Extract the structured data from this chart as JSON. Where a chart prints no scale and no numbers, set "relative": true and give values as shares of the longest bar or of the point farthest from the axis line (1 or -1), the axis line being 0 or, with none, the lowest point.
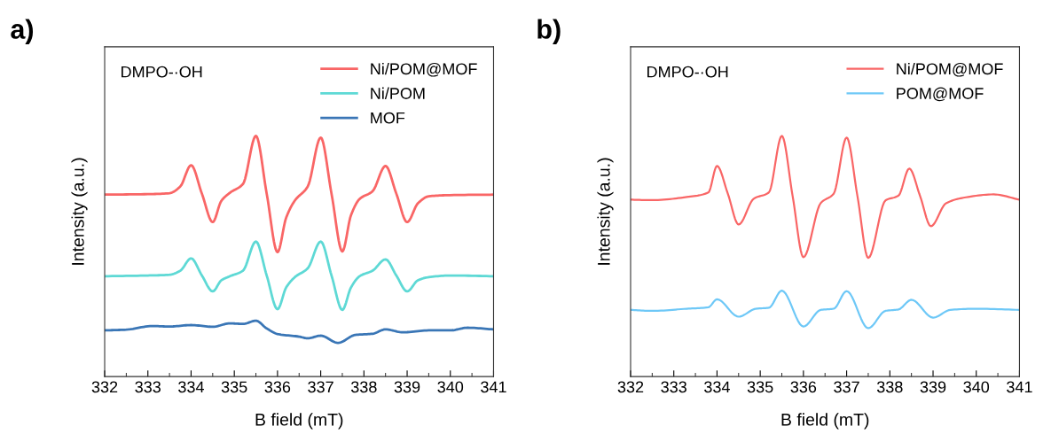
{
  "chart_data": [
    {
      "type": "line",
      "title": "a)",
      "xlabel": "B field (mT)",
      "ylabel": "Intensity (a.u.)",
      "relative": true,
      "xlim": [
        332,
        341
      ],
      "xticks": [
        332,
        333,
        334,
        335,
        336,
        337,
        338,
        339,
        340,
        341
      ],
      "tick_labels": "x",
      "legend": "top right",
      "grid": false,
      "annotations": [
        "DMPO-·OH"
      ],
      "series": [
        {
          "name": "Ni/POM@MOF",
          "color": "#f96666",
          "x": [
            332,
            333,
            333.5,
            333.75,
            334.0,
            334.25,
            334.5,
            334.7,
            334.9,
            335.2,
            335.5,
            335.75,
            336.0,
            336.2,
            336.4,
            336.7,
            337.0,
            337.25,
            337.5,
            337.7,
            337.9,
            338.2,
            338.5,
            338.75,
            339.0,
            339.25,
            339.5,
            340,
            341
          ],
          "values": [
            0.756,
            0.758,
            0.762,
            0.79,
            0.878,
            0.76,
            0.642,
            0.73,
            0.764,
            0.8,
            1.0,
            0.76,
            0.517,
            0.66,
            0.731,
            0.79,
            0.993,
            0.76,
            0.52,
            0.67,
            0.738,
            0.77,
            0.875,
            0.76,
            0.642,
            0.72,
            0.749,
            0.754,
            0.756
          ]
        },
        {
          "name": "Ni/POM",
          "color": "#5ed9d5",
          "x": [
            332,
            333,
            333.5,
            333.75,
            334.0,
            334.25,
            334.5,
            334.7,
            334.9,
            335.2,
            335.5,
            335.75,
            336.0,
            336.2,
            336.4,
            336.7,
            337.0,
            337.25,
            337.5,
            337.7,
            337.9,
            338.2,
            338.5,
            338.75,
            339.0,
            339.25,
            339.5,
            340,
            341
          ],
          "values": [
            0.417,
            0.42,
            0.423,
            0.44,
            0.491,
            0.42,
            0.354,
            0.4,
            0.417,
            0.44,
            0.561,
            0.42,
            0.28,
            0.37,
            0.413,
            0.45,
            0.561,
            0.42,
            0.277,
            0.37,
            0.417,
            0.44,
            0.487,
            0.42,
            0.354,
            0.4,
            0.413,
            0.42,
            0.417
          ]
        },
        {
          "name": "MOF",
          "color": "#3a76b6",
          "x": [
            332,
            332.5,
            333.1,
            333.5,
            334.0,
            334.5,
            334.9,
            335.2,
            335.5,
            335.75,
            336.0,
            336.5,
            336.7,
            337.0,
            337.4,
            337.8,
            338.2,
            338.5,
            338.9,
            339.5,
            340.0,
            340.4,
            341
          ],
          "values": [
            0.192,
            0.195,
            0.21,
            0.208,
            0.214,
            0.207,
            0.221,
            0.219,
            0.232,
            0.2,
            0.177,
            0.166,
            0.159,
            0.17,
            0.14,
            0.173,
            0.178,
            0.196,
            0.184,
            0.192,
            0.192,
            0.203,
            0.196
          ]
        }
      ]
    },
    {
      "type": "line",
      "title": "b)",
      "xlabel": "B field (mT)",
      "ylabel": "Intensity (a.u.)",
      "relative": true,
      "xlim": [
        332,
        341
      ],
      "xticks": [
        332,
        333,
        334,
        335,
        336,
        337,
        338,
        339,
        340,
        341
      ],
      "tick_labels": "x",
      "legend": "top right",
      "grid": false,
      "annotations": [
        "DMPO-·OH"
      ],
      "series": [
        {
          "name": "Ni/POM@MOF",
          "color": "#f96666",
          "x": [
            332,
            332.5,
            333.3,
            333.8,
            334.0,
            334.25,
            334.5,
            334.85,
            335.2,
            335.5,
            335.75,
            336.0,
            336.4,
            336.7,
            337.0,
            337.25,
            337.5,
            337.9,
            338.2,
            338.45,
            338.7,
            338.95,
            339.3,
            339.7,
            340.4,
            341
          ],
          "values": [
            0.735,
            0.733,
            0.746,
            0.765,
            0.875,
            0.76,
            0.632,
            0.739,
            0.765,
            1.0,
            0.75,
            0.496,
            0.721,
            0.76,
            0.993,
            0.75,
            0.493,
            0.732,
            0.752,
            0.864,
            0.75,
            0.625,
            0.72,
            0.743,
            0.757,
            0.735
          ]
        },
        {
          "name": "POM@MOF",
          "color": "#6ec8f7",
          "x": [
            332,
            332.5,
            333.3,
            333.8,
            334.0,
            334.5,
            334.9,
            335.2,
            335.5,
            336.0,
            336.4,
            336.7,
            337.0,
            337.5,
            337.9,
            338.2,
            338.5,
            339.0,
            339.4,
            340,
            341
          ],
          "values": [
            0.277,
            0.273,
            0.282,
            0.288,
            0.321,
            0.249,
            0.282,
            0.286,
            0.357,
            0.208,
            0.277,
            0.282,
            0.355,
            0.201,
            0.273,
            0.279,
            0.319,
            0.245,
            0.277,
            0.282,
            0.277
          ]
        }
      ]
    }
  ]
}
